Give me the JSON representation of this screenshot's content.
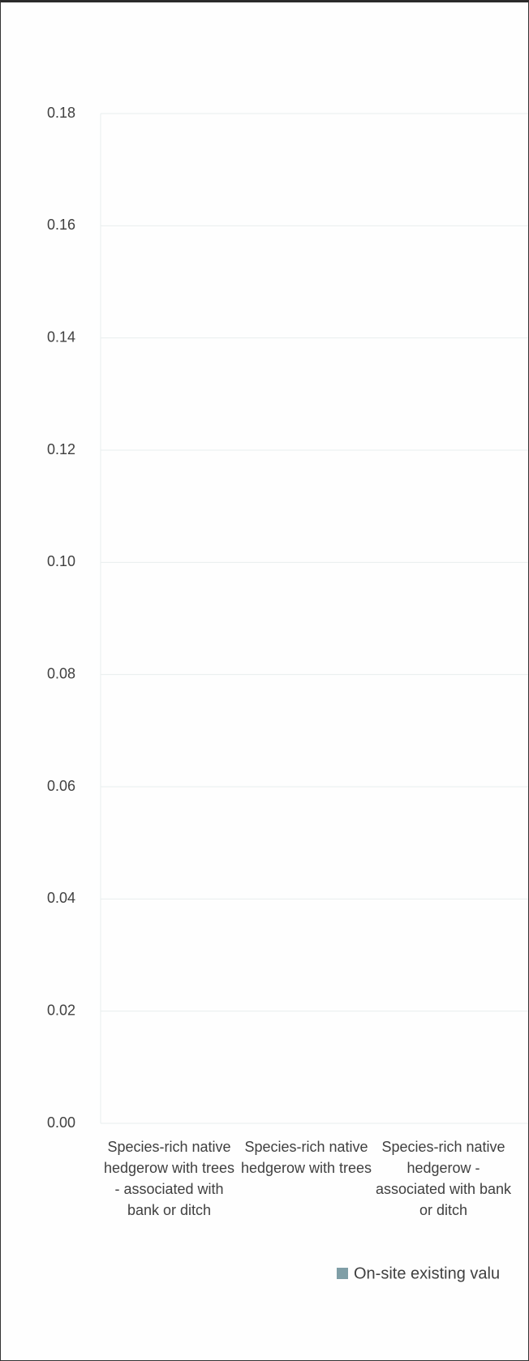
{
  "chart_data": {
    "type": "bar",
    "categories": [
      "Species-rich native hedgerow with trees - associated with bank or ditch",
      "Species-rich native hedgerow with trees",
      "Species-rich native hedgerow - associated with bank or ditch"
    ],
    "series": [
      {
        "name": "On-site existing valu",
        "color": "#7f9ea6",
        "values": [
          0,
          0,
          0
        ]
      }
    ],
    "ylim": [
      0,
      0.18
    ],
    "yticks": [
      {
        "value": 0,
        "label": "0.00"
      },
      {
        "value": 0.02,
        "label": "0.02"
      },
      {
        "value": 0.04,
        "label": "0.04"
      },
      {
        "value": 0.06,
        "label": "0.06"
      },
      {
        "value": 0.08,
        "label": "0.08"
      },
      {
        "value": 0.1,
        "label": "0.10"
      },
      {
        "value": 0.12,
        "label": "0.12"
      },
      {
        "value": 0.14,
        "label": "0.14"
      },
      {
        "value": 0.16,
        "label": "0.16"
      },
      {
        "value": 0.18,
        "label": "0.18"
      }
    ],
    "grid": true
  }
}
